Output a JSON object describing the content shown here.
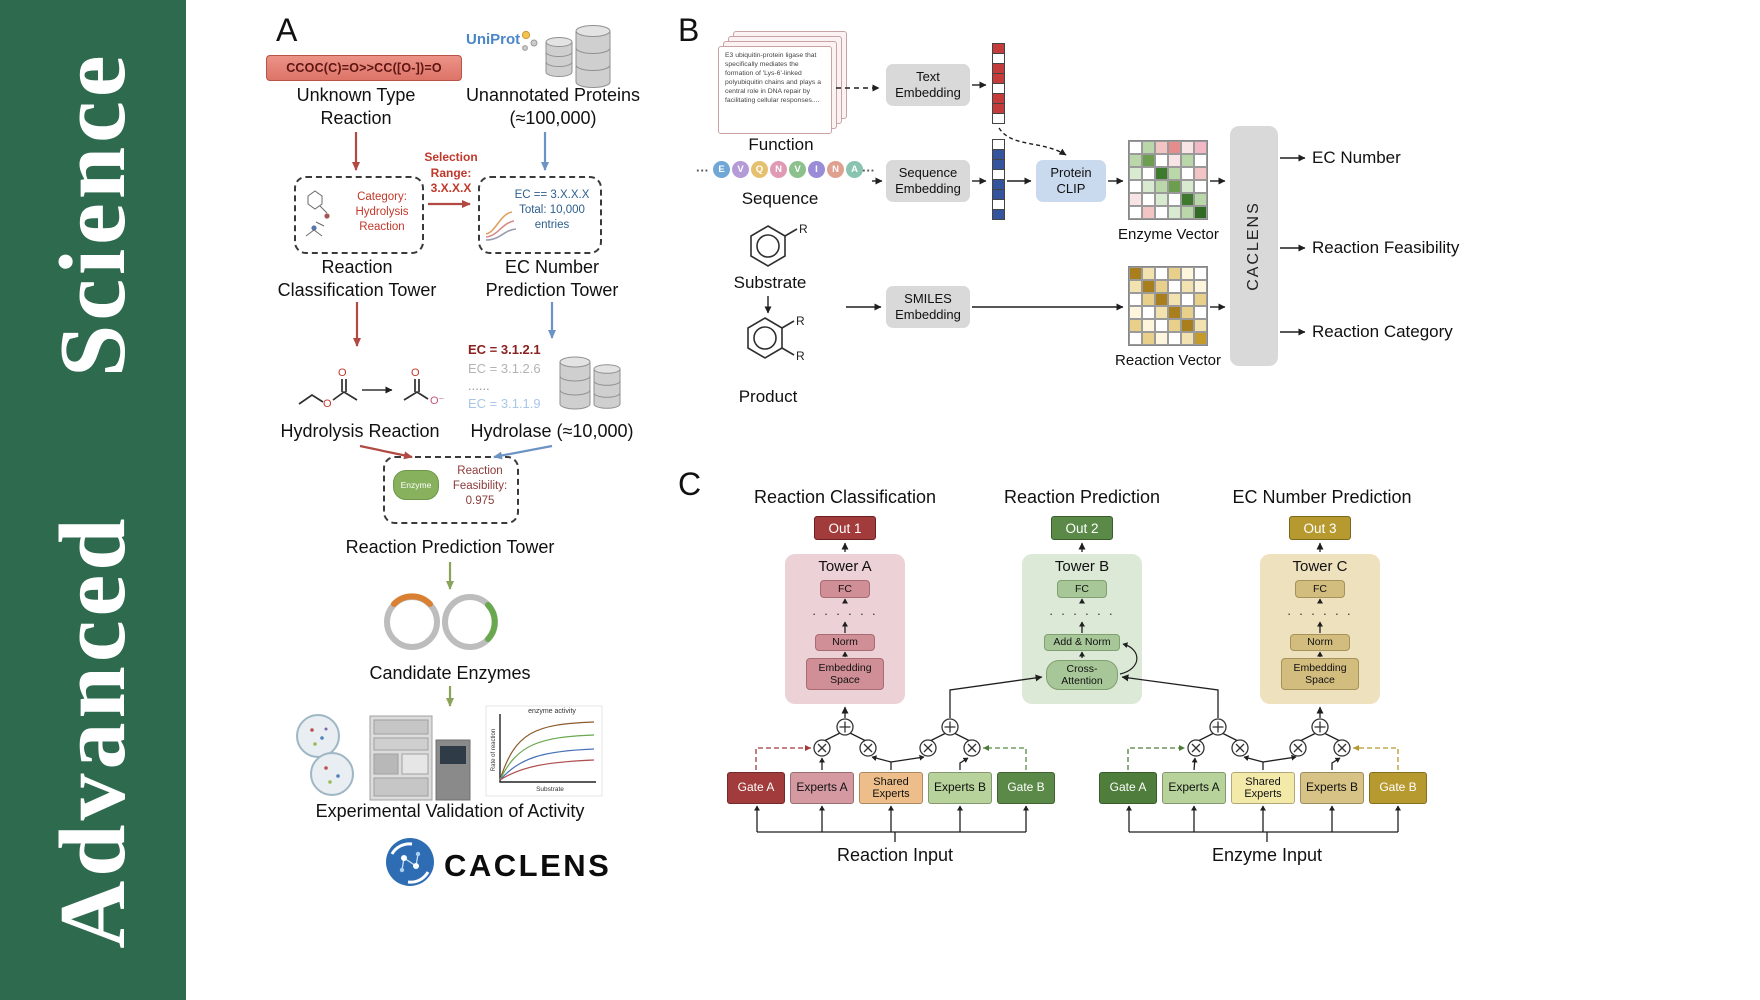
{
  "journal": {
    "name": "Advanced Science"
  },
  "panelA": {
    "label": "A",
    "smiles_reaction": "CCOC(C)=O>>CC([O-])=O",
    "unknown_reaction_label": "Unknown Type Reaction",
    "uniprot_label": "UniProt",
    "unannotated_label": "Unannotated Proteins (≈100,000)",
    "category_lines": [
      "Category:",
      "Hydrolysis",
      "Reaction"
    ],
    "selection_lines": [
      "Selection",
      "Range:",
      "3.X.X.X"
    ],
    "ec_filter_lines": [
      "EC == 3.X.X.X",
      "Total: 10,000",
      "entries"
    ],
    "classification_tower_label": "Reaction Classification Tower",
    "ec_tower_label": "EC Number Prediction Tower",
    "hydrolysis_label": "Hydrolysis Reaction",
    "ec_list": [
      "EC = 3.1.2.1",
      "EC = 3.1.2.6",
      "......",
      "EC = 3.1.1.9"
    ],
    "hydrolase_label": "Hydrolase (≈10,000)",
    "enzyme_badge": "Enzyme",
    "feasibility_lines": [
      "Reaction",
      "Feasibility:",
      "0.975"
    ],
    "prediction_tower_label": "Reaction Prediction Tower",
    "candidate_label": "Candidate Enzymes",
    "validation_label": "Experimental Validation of Activity",
    "logo_text": "CACLENS",
    "molecule_labels": {
      "o": "O",
      "o_minus": "O⁻"
    },
    "mini_chart": {
      "title": "enzyme activity",
      "ylabel": "Rate of reaction",
      "xlabel": "Substrate"
    }
  },
  "panelB": {
    "label": "B",
    "function_card_text": "E3 ubiquitin-protein ligase that specifically mediates the formation of 'Lys-6'-linked polyubiquitin chains and plays a central role in DNA repair by facilitating cellular responses....",
    "function_label": "Function",
    "text_embedding_label": "Text Embedding",
    "ellipsis": "···",
    "sequence_tokens": [
      {
        "letter": "E",
        "color": "#6fa8d6"
      },
      {
        "letter": "V",
        "color": "#b49bd8"
      },
      {
        "letter": "Q",
        "color": "#e5c06e"
      },
      {
        "letter": "N",
        "color": "#e09ab4"
      },
      {
        "letter": "V",
        "color": "#8cc08c"
      },
      {
        "letter": "I",
        "color": "#9b8cd8"
      },
      {
        "letter": "N",
        "color": "#e0a090"
      },
      {
        "letter": "A",
        "color": "#88c4b0"
      }
    ],
    "sequence_label": "Sequence",
    "sequence_embedding_label": "Sequence Embedding",
    "protein_clip_label": "Protein CLIP",
    "enzyme_vector_label": "Enzyme Vector",
    "substrate_label": "Substrate",
    "product_label": "Product",
    "r_label": "R",
    "smiles_embedding_label": "SMILES Embedding",
    "reaction_vector_label": "Reaction Vector",
    "caclens_label": "CACLENS",
    "outputs": [
      "EC Number",
      "Reaction Feasibility",
      "Reaction Category"
    ],
    "text_vector_cells": [
      "#c43b3b",
      "#ffffff",
      "#c43b3b",
      "#c43b3b",
      "#ffffff",
      "#c43b3b",
      "#c43b3b",
      "#ffffff"
    ],
    "seq_vector_cells": [
      "#ffffff",
      "#34549e",
      "#34549e",
      "#ffffff",
      "#34549e",
      "#34549e",
      "#ffffff",
      "#34549e"
    ],
    "enzyme_vector_grid": [
      [
        "#ffffff",
        "#b9d7a8",
        "#f2c4c4",
        "#e58d8d",
        "#f8e4e4",
        "#f2b8c6"
      ],
      [
        "#b9d7a8",
        "#6d9e4f",
        "#ffffff",
        "#f8e4e4",
        "#b9d7a8",
        "#ffffff"
      ],
      [
        "#d8ead0",
        "#ffffff",
        "#3e7a2e",
        "#b9d7a8",
        "#ffffff",
        "#f2c4c4"
      ],
      [
        "#ffffff",
        "#d8ead0",
        "#b9d7a8",
        "#6d9e4f",
        "#d8ead0",
        "#ffffff"
      ],
      [
        "#f8e4e4",
        "#ffffff",
        "#d8ead0",
        "#ffffff",
        "#3e7a2e",
        "#b9d7a8"
      ],
      [
        "#ffffff",
        "#f2c4c4",
        "#ffffff",
        "#d8ead0",
        "#b9d7a8",
        "#2f6b22"
      ]
    ],
    "reaction_vector_grid": [
      [
        "#a97f1d",
        "#f2e2b0",
        "#ffffff",
        "#e8cf8a",
        "#fdf6dd",
        "#ffffff"
      ],
      [
        "#f2e2b0",
        "#a97f1d",
        "#e8cf8a",
        "#ffffff",
        "#f2e2b0",
        "#fdf6dd"
      ],
      [
        "#ffffff",
        "#e8cf8a",
        "#a97f1d",
        "#f2e2b0",
        "#ffffff",
        "#e8cf8a"
      ],
      [
        "#fdf6dd",
        "#ffffff",
        "#f2e2b0",
        "#a97f1d",
        "#e8cf8a",
        "#ffffff"
      ],
      [
        "#e8cf8a",
        "#fdf6dd",
        "#ffffff",
        "#e8cf8a",
        "#a97f1d",
        "#f2e2b0"
      ],
      [
        "#ffffff",
        "#e8cf8a",
        "#fdf6dd",
        "#ffffff",
        "#f2e2b0",
        "#c49a2a"
      ]
    ]
  },
  "panelC": {
    "label": "C",
    "columns": [
      {
        "title": "Reaction Classification",
        "out": "Out 1",
        "tower": "Tower A",
        "fc": "FC",
        "dots": "· · · · · ·",
        "mid": "Norm",
        "bottom": "Embedding Space"
      },
      {
        "title": "Reaction Prediction",
        "out": "Out 2",
        "tower": "Tower B",
        "fc": "FC",
        "dots": "· · · · · ·",
        "mid": "Add & Norm",
        "bottom": "Cross-Attention"
      },
      {
        "title": "EC Number Prediction",
        "out": "Out 3",
        "tower": "Tower C",
        "fc": "FC",
        "dots": "· · · · · ·",
        "mid": "Norm",
        "bottom": "Embedding Space"
      }
    ],
    "groups": [
      {
        "gate_a": "Gate A",
        "experts_a": "Experts A",
        "shared": "Shared Experts",
        "experts_b": "Experts B",
        "gate_b": "Gate B",
        "input": "Reaction Input"
      },
      {
        "gate_a": "Gate A",
        "experts_a": "Experts A",
        "shared": "Shared Experts",
        "experts_b": "Experts B",
        "gate_b": "Gate B",
        "input": "Enzyme Input"
      }
    ]
  },
  "colors": {
    "journal_green": "#2d6a4e",
    "red_accent": "#b04a42",
    "blue_accent": "#6b93c4",
    "green_accent": "#8aa35a",
    "out1": "#a23b3b",
    "out2": "#5b8a48",
    "out3": "#b6992f"
  }
}
